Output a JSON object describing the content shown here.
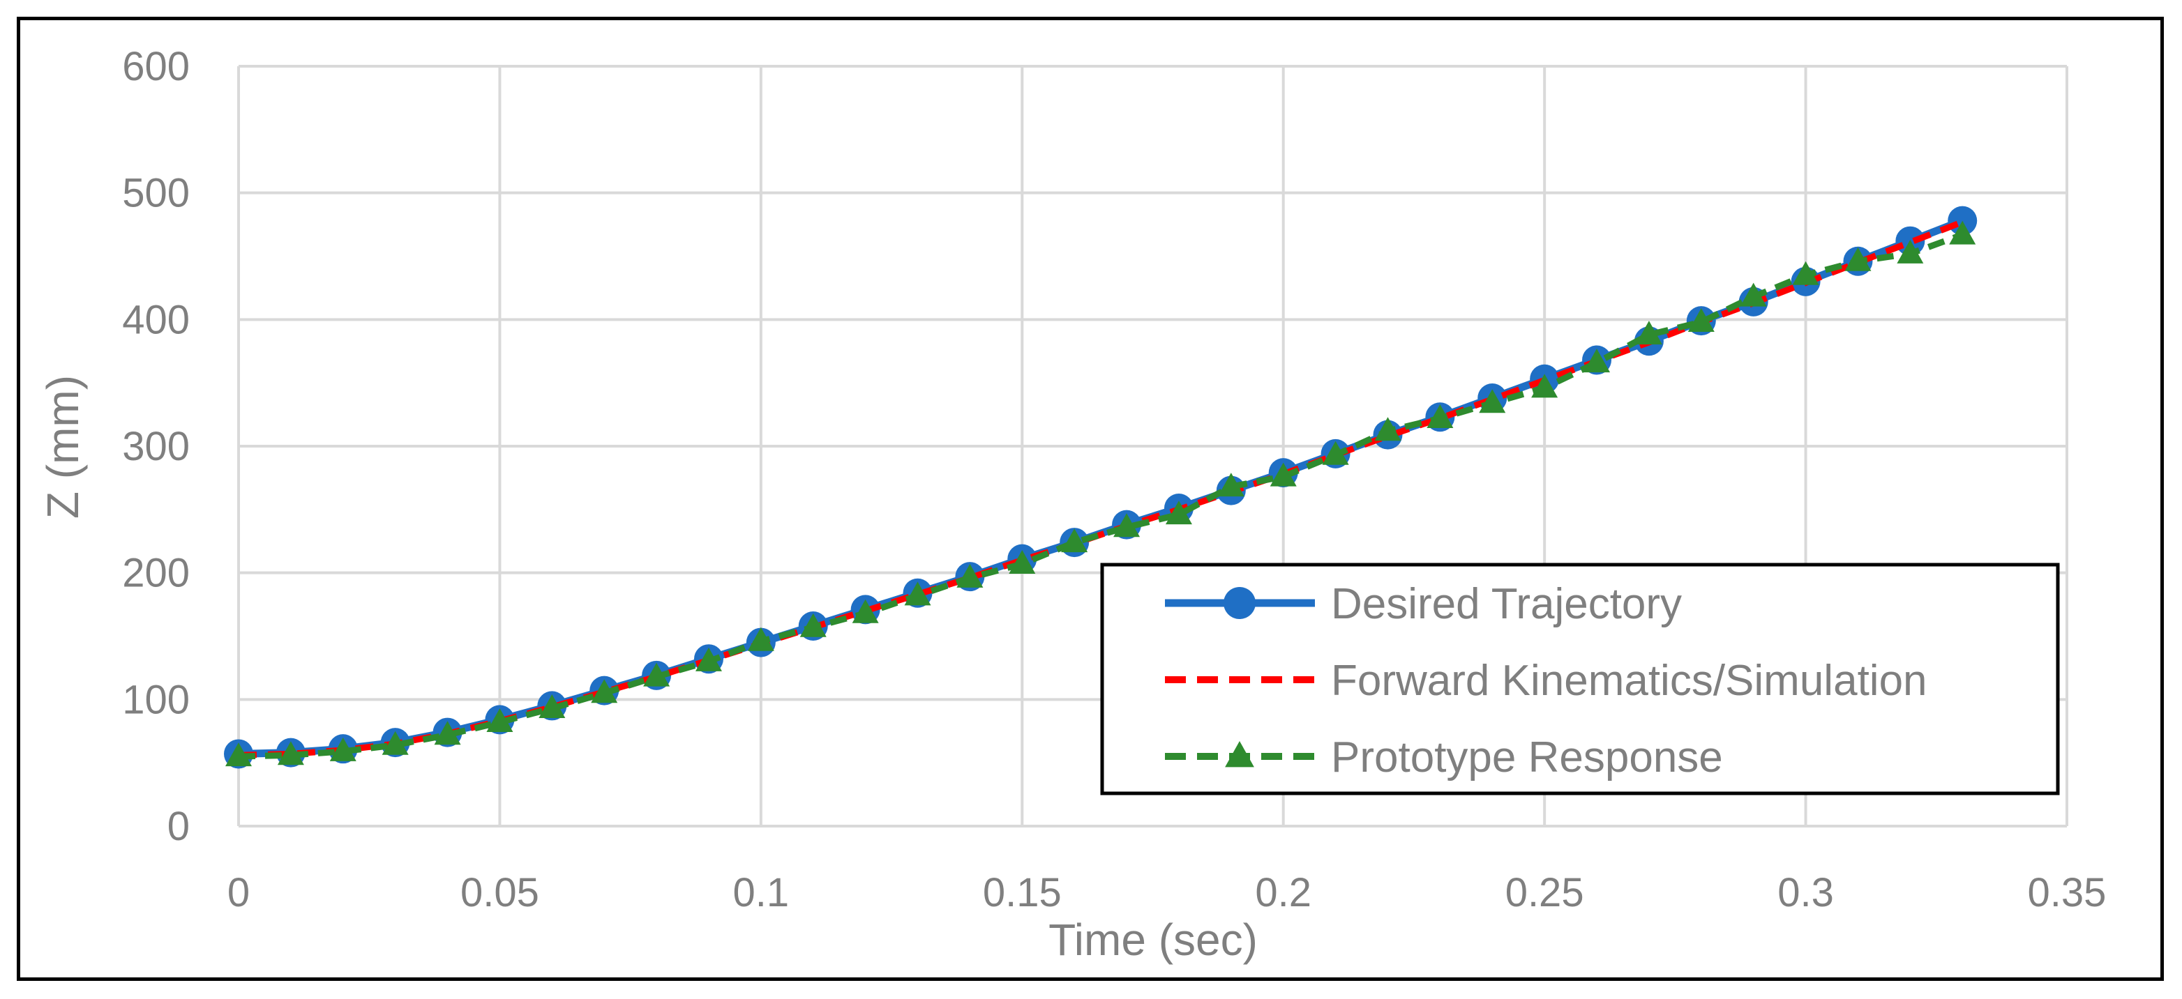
{
  "chart_data": {
    "type": "line",
    "title": "",
    "xlabel": "Time (sec)",
    "ylabel": "Z (mm)",
    "xlim": [
      0,
      0.35
    ],
    "ylim": [
      0,
      600
    ],
    "x_ticks": [
      "0",
      "0.05",
      "0.1",
      "0.15",
      "0.2",
      "0.25",
      "0.3",
      "0.35"
    ],
    "y_ticks": [
      "0",
      "100",
      "200",
      "300",
      "400",
      "500",
      "600"
    ],
    "grid": true,
    "legend_position": "bottom-right",
    "x": [
      0,
      0.01,
      0.02,
      0.03,
      0.04,
      0.05,
      0.06,
      0.07,
      0.08,
      0.09,
      0.1,
      0.11,
      0.12,
      0.13,
      0.14,
      0.15,
      0.16,
      0.17,
      0.18,
      0.19,
      0.2,
      0.21,
      0.22,
      0.23,
      0.24,
      0.25,
      0.26,
      0.27,
      0.28,
      0.29,
      0.3,
      0.31,
      0.32,
      0.33
    ],
    "series": [
      {
        "name": "Desired Trajectory",
        "color": "#1f6fc5",
        "style": "solid-circle",
        "values": [
          57,
          58,
          61,
          66,
          74,
          84,
          95,
          107,
          119,
          132,
          145,
          158,
          171,
          184,
          197,
          211,
          224,
          238,
          251,
          265,
          279,
          294,
          309,
          323,
          338,
          353,
          368,
          383,
          399,
          414,
          430,
          446,
          462,
          478
        ]
      },
      {
        "name": "Forward Kinematics/Simulation",
        "color": "#ff0000",
        "style": "dashed",
        "values": [
          56,
          57,
          60,
          65,
          73,
          83,
          94,
          106,
          118,
          131,
          144,
          157,
          170,
          183,
          196,
          210,
          223,
          237,
          250,
          264,
          278,
          293,
          308,
          322,
          337,
          352,
          367,
          382,
          398,
          413,
          429,
          445,
          461,
          477
        ]
      },
      {
        "name": "Prototype Response",
        "color": "#2e8b2e",
        "style": "dashed-triangle",
        "values": [
          55,
          56,
          59,
          64,
          72,
          82,
          93,
          105,
          118,
          130,
          146,
          157,
          168,
          182,
          196,
          207,
          224,
          236,
          246,
          268,
          276,
          293,
          312,
          322,
          334,
          346,
          366,
          388,
          398,
          418,
          435,
          446,
          452,
          467
        ]
      }
    ]
  }
}
